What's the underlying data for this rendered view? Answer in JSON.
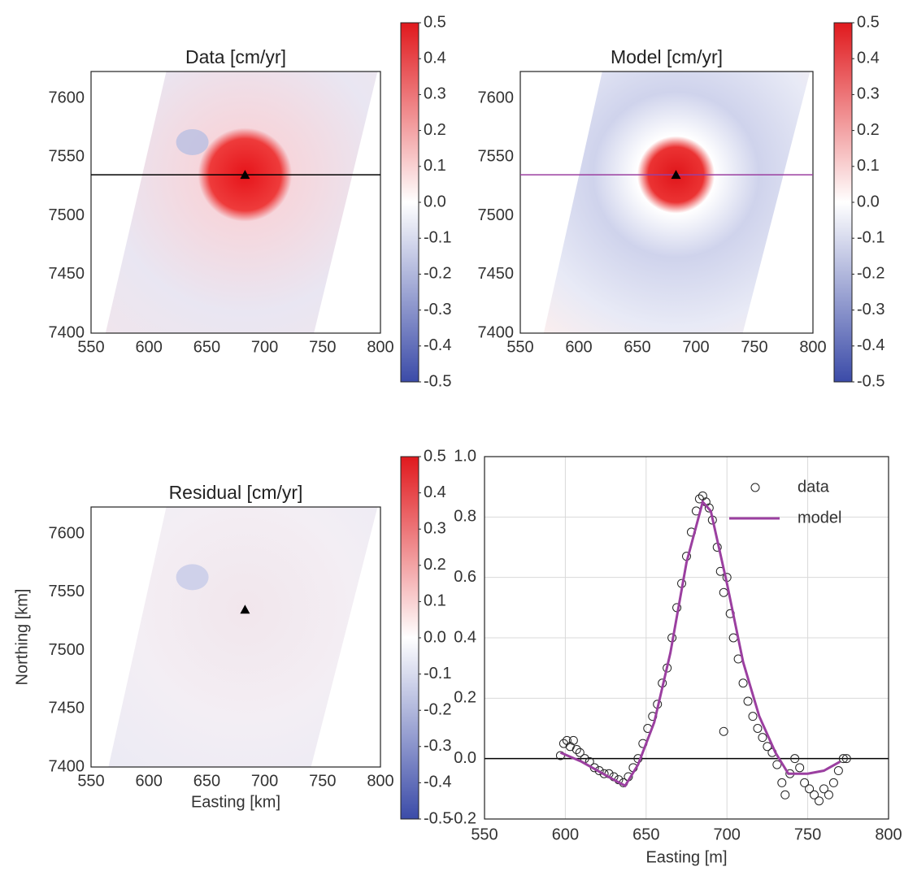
{
  "chart_data": [
    {
      "type": "map",
      "title": "Data [cm/yr]",
      "xlim": [
        550,
        800
      ],
      "ylim": [
        7400,
        7623
      ],
      "xticks": [
        550,
        600,
        650,
        700,
        750,
        800
      ],
      "yticks": [
        7400,
        7450,
        7500,
        7550,
        7600
      ],
      "source": {
        "x": 683,
        "y": 7535
      },
      "profile": {
        "northing": 7535,
        "color": "#000000"
      },
      "colorbar": {
        "lim": [
          -0.5,
          0.5
        ],
        "ticks": [
          -0.5,
          -0.4,
          -0.3,
          -0.2,
          -0.1,
          {
            "value": 0,
            "label": "0.0"
          },
          0.1,
          0.2,
          0.3,
          0.4,
          0.5
        ]
      }
    },
    {
      "type": "map",
      "title": "Model [cm/yr]",
      "xlim": [
        550,
        800
      ],
      "ylim": [
        7400,
        7623
      ],
      "xticks": [
        550,
        600,
        650,
        700,
        750,
        800
      ],
      "yticks": [
        7400,
        7450,
        7500,
        7550,
        7600
      ],
      "source": {
        "x": 683,
        "y": 7535
      },
      "profile": {
        "northing": 7535,
        "color": "#9b3fa0"
      },
      "colorbar": {
        "lim": [
          -0.5,
          0.5
        ],
        "ticks": [
          -0.5,
          -0.4,
          -0.3,
          -0.2,
          -0.1,
          {
            "value": 0,
            "label": "0.0"
          },
          0.1,
          0.2,
          0.3,
          0.4,
          0.5
        ]
      }
    },
    {
      "type": "map",
      "title": "Residual [cm/yr]",
      "xlabel": "Easting [km]",
      "ylabel": "Northing [km]",
      "xlim": [
        550,
        800
      ],
      "ylim": [
        7400,
        7623
      ],
      "xticks": [
        550,
        600,
        650,
        700,
        750,
        800
      ],
      "yticks": [
        7400,
        7450,
        7500,
        7550,
        7600
      ],
      "source": {
        "x": 683,
        "y": 7535
      },
      "colorbar": {
        "lim": [
          -0.5,
          0.5
        ],
        "ticks": [
          -0.5,
          -0.4,
          -0.3,
          -0.2,
          -0.1,
          {
            "value": 0,
            "label": "0.0"
          },
          0.1,
          0.2,
          0.3,
          0.4,
          0.5
        ]
      }
    },
    {
      "type": "scatter",
      "xlabel": "Easting [m]",
      "xlim": [
        550,
        800
      ],
      "ylim": [
        -0.2,
        1.0
      ],
      "xticks": [
        550,
        600,
        650,
        700,
        750,
        800
      ],
      "yticks": [
        -0.2,
        {
          "value": 0,
          "label": "0.0"
        },
        0.2,
        0.4,
        0.6,
        0.8,
        {
          "value": 1,
          "label": "1.0"
        }
      ],
      "grid": true,
      "legend": "upper right",
      "reference_line": 0,
      "series": [
        {
          "name": "data",
          "style": "markers",
          "color": "#222222",
          "x": [
            597,
            599,
            601,
            603,
            605,
            607,
            609,
            612,
            615,
            618,
            621,
            624,
            627,
            630,
            633,
            636,
            639,
            642,
            645,
            648,
            651,
            654,
            657,
            660,
            663,
            666,
            669,
            672,
            675,
            678,
            681,
            683,
            685,
            687,
            689,
            691,
            694,
            696,
            698,
            698,
            700,
            702,
            704,
            707,
            710,
            713,
            716,
            719,
            722,
            725,
            728,
            731,
            734,
            736,
            739,
            742,
            745,
            748,
            751,
            754,
            757,
            760,
            763,
            766,
            769,
            772,
            774
          ],
          "values": [
            0.01,
            0.05,
            0.06,
            0.04,
            0.06,
            0.03,
            0.02,
            0.0,
            -0.01,
            -0.03,
            -0.04,
            -0.05,
            -0.05,
            -0.06,
            -0.07,
            -0.08,
            -0.06,
            -0.03,
            0.0,
            0.05,
            0.1,
            0.14,
            0.18,
            0.25,
            0.3,
            0.4,
            0.5,
            0.58,
            0.67,
            0.75,
            0.82,
            0.86,
            0.87,
            0.85,
            0.83,
            0.79,
            0.7,
            0.62,
            0.55,
            0.09,
            0.6,
            0.48,
            0.4,
            0.33,
            0.25,
            0.19,
            0.14,
            0.1,
            0.07,
            0.04,
            0.02,
            -0.02,
            -0.08,
            -0.12,
            -0.05,
            0.0,
            -0.03,
            -0.08,
            -0.1,
            -0.12,
            -0.14,
            -0.1,
            -0.12,
            -0.08,
            -0.04,
            0.0,
            0.0
          ]
        },
        {
          "name": "model",
          "style": "line",
          "color": "#9b3fa0",
          "x": [
            597,
            610,
            620,
            630,
            637,
            645,
            655,
            665,
            675,
            685,
            690,
            700,
            710,
            720,
            730,
            738,
            750,
            760,
            770
          ],
          "values": [
            0.02,
            -0.01,
            -0.04,
            -0.07,
            -0.09,
            -0.02,
            0.12,
            0.35,
            0.65,
            0.85,
            0.82,
            0.58,
            0.32,
            0.14,
            0.02,
            -0.05,
            -0.05,
            -0.04,
            -0.01
          ]
        }
      ]
    }
  ]
}
